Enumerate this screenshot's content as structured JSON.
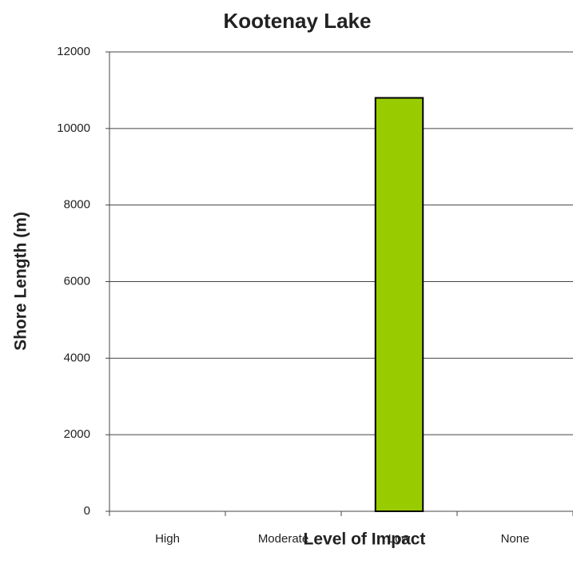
{
  "chart_data": {
    "type": "bar",
    "title": "Kootenay Lake",
    "x_label": "Level of Impact",
    "y_label": "Shore Length (m)",
    "categories": [
      "High",
      "Moderate",
      "Low",
      "None"
    ],
    "values": [
      0,
      0,
      10800,
      0
    ],
    "color": "#99cc00",
    "ylim": [
      0,
      12000
    ],
    "yticks": [
      0,
      2000,
      4000,
      6000,
      8000,
      10000,
      12000
    ],
    "grid": true
  }
}
